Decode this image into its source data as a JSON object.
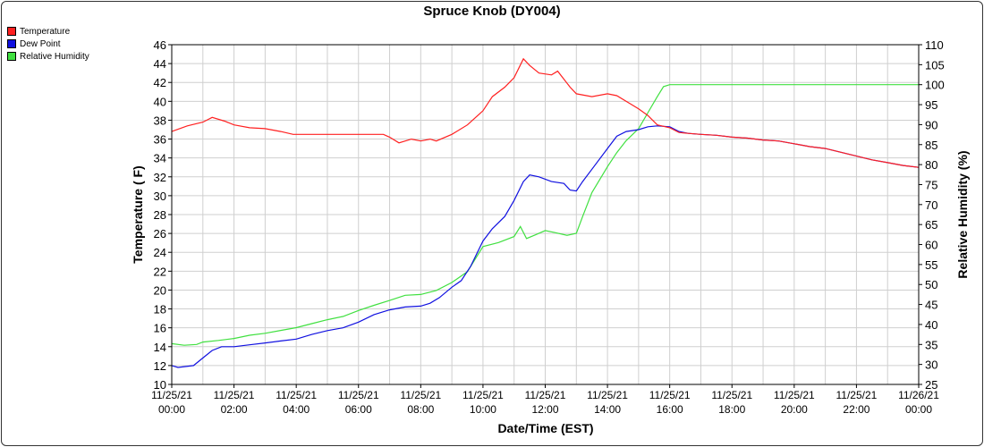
{
  "chart_data": {
    "type": "line",
    "title": "Spruce Knob (DY004)",
    "xlabel": "Date/Time (EST)",
    "ylabel_left": "Temperature ( F)",
    "ylabel_right": "Relative Humidity (%)",
    "x_range_hours": [
      0,
      24
    ],
    "ylim_left": [
      10,
      46
    ],
    "ylim_right": [
      25,
      110
    ],
    "grid": true,
    "legend_position": "top-left",
    "x_ticks": [
      {
        "hour": 0,
        "date": "11/25/21",
        "time": "00:00"
      },
      {
        "hour": 2,
        "date": "11/25/21",
        "time": "02:00"
      },
      {
        "hour": 4,
        "date": "11/25/21",
        "time": "04:00"
      },
      {
        "hour": 6,
        "date": "11/25/21",
        "time": "06:00"
      },
      {
        "hour": 8,
        "date": "11/25/21",
        "time": "08:00"
      },
      {
        "hour": 10,
        "date": "11/25/21",
        "time": "10:00"
      },
      {
        "hour": 12,
        "date": "11/25/21",
        "time": "12:00"
      },
      {
        "hour": 14,
        "date": "11/25/21",
        "time": "14:00"
      },
      {
        "hour": 16,
        "date": "11/25/21",
        "time": "16:00"
      },
      {
        "hour": 18,
        "date": "11/25/21",
        "time": "18:00"
      },
      {
        "hour": 20,
        "date": "11/25/21",
        "time": "20:00"
      },
      {
        "hour": 22,
        "date": "11/25/21",
        "time": "22:00"
      },
      {
        "hour": 24,
        "date": "11/26/21",
        "time": "00:00"
      }
    ],
    "y_ticks_left": [
      10,
      12,
      14,
      16,
      18,
      20,
      22,
      24,
      26,
      28,
      30,
      32,
      34,
      36,
      38,
      40,
      42,
      44,
      46
    ],
    "y_ticks_right": [
      25,
      30,
      35,
      40,
      45,
      50,
      55,
      60,
      65,
      70,
      75,
      80,
      85,
      90,
      95,
      100,
      105,
      110
    ],
    "series": [
      {
        "name": "Temperature",
        "color": "#ff2020",
        "axis": "left",
        "points": [
          [
            0,
            36.8
          ],
          [
            0.5,
            37.4
          ],
          [
            1,
            37.8
          ],
          [
            1.3,
            38.3
          ],
          [
            1.7,
            37.9
          ],
          [
            2,
            37.5
          ],
          [
            2.5,
            37.2
          ],
          [
            3,
            37.1
          ],
          [
            3.5,
            36.8
          ],
          [
            3.9,
            36.5
          ],
          [
            5,
            36.5
          ],
          [
            6,
            36.5
          ],
          [
            6.8,
            36.5
          ],
          [
            7,
            36.2
          ],
          [
            7.3,
            35.6
          ],
          [
            7.7,
            36.0
          ],
          [
            8,
            35.8
          ],
          [
            8.3,
            36.0
          ],
          [
            8.5,
            35.8
          ],
          [
            9,
            36.5
          ],
          [
            9.5,
            37.5
          ],
          [
            10,
            39.0
          ],
          [
            10.3,
            40.5
          ],
          [
            10.7,
            41.5
          ],
          [
            11,
            42.5
          ],
          [
            11.3,
            44.5
          ],
          [
            11.5,
            43.8
          ],
          [
            11.8,
            43.0
          ],
          [
            12.2,
            42.8
          ],
          [
            12.4,
            43.2
          ],
          [
            12.8,
            41.5
          ],
          [
            13,
            40.8
          ],
          [
            13.5,
            40.5
          ],
          [
            14,
            40.8
          ],
          [
            14.3,
            40.6
          ],
          [
            14.7,
            39.8
          ],
          [
            15,
            39.2
          ],
          [
            15.3,
            38.5
          ],
          [
            15.6,
            37.5
          ],
          [
            16,
            37.2
          ],
          [
            16.3,
            36.7
          ],
          [
            16.6,
            36.6
          ],
          [
            17,
            36.5
          ],
          [
            17.5,
            36.4
          ],
          [
            18,
            36.2
          ],
          [
            18.5,
            36.1
          ],
          [
            19,
            35.9
          ],
          [
            19.5,
            35.8
          ],
          [
            20,
            35.5
          ],
          [
            20.5,
            35.2
          ],
          [
            21,
            35.0
          ],
          [
            21.5,
            34.6
          ],
          [
            22,
            34.2
          ],
          [
            22.5,
            33.8
          ],
          [
            23,
            33.5
          ],
          [
            23.5,
            33.2
          ],
          [
            24,
            33.0
          ]
        ]
      },
      {
        "name": "Dew Point",
        "color": "#1010e0",
        "axis": "left",
        "points": [
          [
            0,
            12.0
          ],
          [
            0.2,
            11.8
          ],
          [
            0.7,
            12.0
          ],
          [
            1,
            12.8
          ],
          [
            1.3,
            13.6
          ],
          [
            1.6,
            14.0
          ],
          [
            2,
            14.0
          ],
          [
            2.5,
            14.2
          ],
          [
            3,
            14.4
          ],
          [
            3.5,
            14.6
          ],
          [
            4,
            14.8
          ],
          [
            4.5,
            15.3
          ],
          [
            5,
            15.7
          ],
          [
            5.5,
            16.0
          ],
          [
            6,
            16.6
          ],
          [
            6.5,
            17.4
          ],
          [
            7,
            17.9
          ],
          [
            7.5,
            18.2
          ],
          [
            8,
            18.3
          ],
          [
            8.3,
            18.6
          ],
          [
            8.6,
            19.2
          ],
          [
            9,
            20.3
          ],
          [
            9.3,
            21.0
          ],
          [
            9.6,
            22.5
          ],
          [
            10,
            25.2
          ],
          [
            10.3,
            26.5
          ],
          [
            10.7,
            27.8
          ],
          [
            11,
            29.5
          ],
          [
            11.3,
            31.5
          ],
          [
            11.5,
            32.2
          ],
          [
            11.8,
            32.0
          ],
          [
            12.2,
            31.5
          ],
          [
            12.6,
            31.3
          ],
          [
            12.8,
            30.6
          ],
          [
            13,
            30.5
          ],
          [
            13.2,
            31.5
          ],
          [
            13.5,
            32.8
          ],
          [
            14,
            35.0
          ],
          [
            14.3,
            36.3
          ],
          [
            14.6,
            36.8
          ],
          [
            15,
            37.0
          ],
          [
            15.3,
            37.3
          ],
          [
            15.6,
            37.4
          ],
          [
            16,
            37.3
          ],
          [
            16.3,
            36.8
          ],
          [
            16.6,
            36.6
          ],
          [
            17,
            36.5
          ],
          [
            17.5,
            36.4
          ],
          [
            18,
            36.2
          ],
          [
            18.5,
            36.1
          ],
          [
            19,
            35.9
          ],
          [
            19.5,
            35.8
          ],
          [
            20,
            35.5
          ],
          [
            20.5,
            35.2
          ],
          [
            21,
            35.0
          ],
          [
            21.5,
            34.6
          ],
          [
            22,
            34.2
          ],
          [
            22.5,
            33.8
          ],
          [
            23,
            33.5
          ],
          [
            23.5,
            33.2
          ],
          [
            24,
            33.0
          ]
        ]
      },
      {
        "name": "Relative Humidity",
        "color": "#40e040",
        "axis": "right",
        "points": [
          [
            0,
            35.2
          ],
          [
            0.4,
            34.8
          ],
          [
            0.8,
            35.0
          ],
          [
            1,
            35.6
          ],
          [
            1.5,
            36.0
          ],
          [
            2,
            36.5
          ],
          [
            2.5,
            37.3
          ],
          [
            3,
            37.8
          ],
          [
            3.5,
            38.5
          ],
          [
            4,
            39.2
          ],
          [
            4.5,
            40.2
          ],
          [
            5,
            41.2
          ],
          [
            5.5,
            42.0
          ],
          [
            6,
            43.5
          ],
          [
            6.5,
            44.8
          ],
          [
            7,
            46.0
          ],
          [
            7.5,
            47.3
          ],
          [
            8,
            47.5
          ],
          [
            8.5,
            48.5
          ],
          [
            9,
            50.5
          ],
          [
            9.5,
            53.2
          ],
          [
            10,
            59.5
          ],
          [
            10.5,
            60.5
          ],
          [
            11,
            62.0
          ],
          [
            11.2,
            64.5
          ],
          [
            11.4,
            61.5
          ],
          [
            11.7,
            62.5
          ],
          [
            12,
            63.5
          ],
          [
            12.3,
            63.0
          ],
          [
            12.7,
            62.3
          ],
          [
            13,
            62.8
          ],
          [
            13.2,
            67.0
          ],
          [
            13.5,
            73.0
          ],
          [
            14,
            79.5
          ],
          [
            14.3,
            83.0
          ],
          [
            14.6,
            86.0
          ],
          [
            15,
            89.0
          ],
          [
            15.3,
            93.0
          ],
          [
            15.6,
            97.0
          ],
          [
            15.8,
            99.5
          ],
          [
            16,
            100.0
          ],
          [
            18,
            100.0
          ],
          [
            20,
            100.0
          ],
          [
            22,
            100.0
          ],
          [
            24,
            100.0
          ]
        ]
      }
    ]
  }
}
